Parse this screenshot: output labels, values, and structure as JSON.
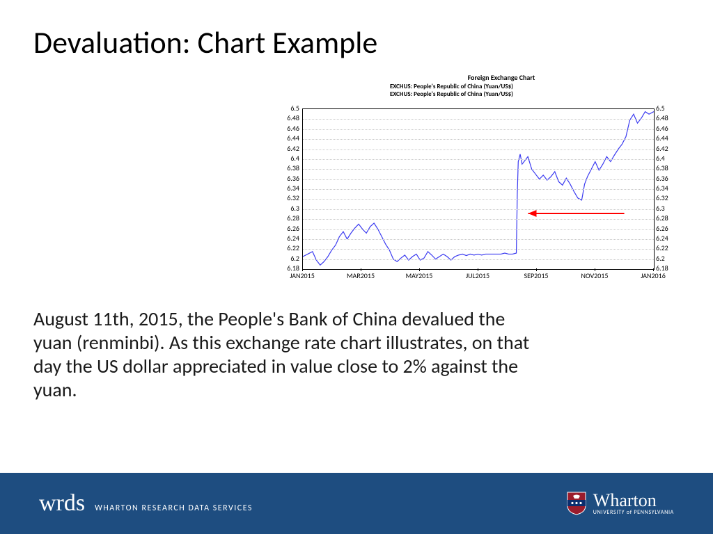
{
  "title": "Devaluation: Chart Example",
  "chart_header": {
    "title": "Foreign Exchange Chart",
    "line1": "EXCHUS:   People's Republic of China (Yuan/US$)",
    "line2": "EXCHUS:   People's Republic of China (Yuan/US$)"
  },
  "chart": {
    "type": "line",
    "line_color": "#3a3af0",
    "line_width": 1.2,
    "background_color": "#ffffff",
    "grid_color": "#c8c8c8",
    "border_color": "#000000",
    "ylim": [
      6.18,
      6.5
    ],
    "ytick_step": 0.02,
    "yticks": [
      6.18,
      6.2,
      6.22,
      6.24,
      6.26,
      6.28,
      6.3,
      6.32,
      6.34,
      6.36,
      6.38,
      6.4,
      6.42,
      6.44,
      6.46,
      6.48,
      6.5
    ],
    "ytick_labels": [
      "6.18",
      "6.2",
      "6.22",
      "6.24",
      "6.26",
      "6.28",
      "6.3",
      "6.32",
      "6.34",
      "6.36",
      "6.38",
      "6.4",
      "6.42",
      "6.44",
      "6.46",
      "6.48",
      "6.5"
    ],
    "xticks": [
      "JAN2015",
      "MAR2015",
      "MAY2015",
      "JUL2015",
      "SEP2015",
      "NOV2015",
      "JAN2016"
    ],
    "xlim_days": [
      0,
      365
    ],
    "tick_fontsize": 10,
    "data": [
      [
        0,
        6.205
      ],
      [
        5,
        6.21
      ],
      [
        10,
        6.215
      ],
      [
        14,
        6.198
      ],
      [
        18,
        6.188
      ],
      [
        22,
        6.195
      ],
      [
        26,
        6.205
      ],
      [
        30,
        6.218
      ],
      [
        34,
        6.228
      ],
      [
        38,
        6.245
      ],
      [
        42,
        6.255
      ],
      [
        46,
        6.24
      ],
      [
        50,
        6.252
      ],
      [
        54,
        6.262
      ],
      [
        58,
        6.27
      ],
      [
        62,
        6.26
      ],
      [
        66,
        6.252
      ],
      [
        70,
        6.265
      ],
      [
        74,
        6.272
      ],
      [
        78,
        6.26
      ],
      [
        82,
        6.245
      ],
      [
        86,
        6.23
      ],
      [
        90,
        6.218
      ],
      [
        94,
        6.2
      ],
      [
        98,
        6.195
      ],
      [
        102,
        6.202
      ],
      [
        106,
        6.208
      ],
      [
        110,
        6.198
      ],
      [
        114,
        6.205
      ],
      [
        118,
        6.21
      ],
      [
        122,
        6.198
      ],
      [
        126,
        6.202
      ],
      [
        130,
        6.215
      ],
      [
        134,
        6.208
      ],
      [
        138,
        6.2
      ],
      [
        142,
        6.205
      ],
      [
        146,
        6.21
      ],
      [
        150,
        6.205
      ],
      [
        154,
        6.198
      ],
      [
        158,
        6.205
      ],
      [
        162,
        6.208
      ],
      [
        166,
        6.21
      ],
      [
        170,
        6.207
      ],
      [
        174,
        6.21
      ],
      [
        178,
        6.208
      ],
      [
        182,
        6.21
      ],
      [
        186,
        6.208
      ],
      [
        190,
        6.21
      ],
      [
        194,
        6.21
      ],
      [
        198,
        6.21
      ],
      [
        202,
        6.21
      ],
      [
        206,
        6.21
      ],
      [
        210,
        6.212
      ],
      [
        214,
        6.21
      ],
      [
        218,
        6.21
      ],
      [
        222,
        6.212
      ],
      [
        223,
        6.33
      ],
      [
        224,
        6.395
      ],
      [
        226,
        6.41
      ],
      [
        228,
        6.39
      ],
      [
        230,
        6.395
      ],
      [
        234,
        6.405
      ],
      [
        238,
        6.38
      ],
      [
        242,
        6.37
      ],
      [
        246,
        6.36
      ],
      [
        250,
        6.368
      ],
      [
        254,
        6.358
      ],
      [
        258,
        6.365
      ],
      [
        262,
        6.375
      ],
      [
        266,
        6.355
      ],
      [
        270,
        6.348
      ],
      [
        274,
        6.362
      ],
      [
        278,
        6.35
      ],
      [
        282,
        6.335
      ],
      [
        286,
        6.322
      ],
      [
        290,
        6.318
      ],
      [
        293,
        6.35
      ],
      [
        296,
        6.365
      ],
      [
        300,
        6.38
      ],
      [
        304,
        6.395
      ],
      [
        308,
        6.378
      ],
      [
        312,
        6.39
      ],
      [
        316,
        6.405
      ],
      [
        320,
        6.395
      ],
      [
        324,
        6.408
      ],
      [
        328,
        6.42
      ],
      [
        332,
        6.43
      ],
      [
        336,
        6.445
      ],
      [
        340,
        6.478
      ],
      [
        344,
        6.49
      ],
      [
        348,
        6.472
      ],
      [
        352,
        6.482
      ],
      [
        356,
        6.495
      ],
      [
        360,
        6.49
      ],
      [
        365,
        6.495
      ]
    ],
    "annotation_arrow": {
      "color": "#ff0000",
      "width": 2,
      "from_x_day": 335,
      "to_x_day": 235,
      "y_value": 6.29
    }
  },
  "body_text": "August 11th, 2015, the People's Bank of China devalued the yuan (renminbi). As this exchange rate chart illustrates, on that day the US dollar appreciated in value close to 2% against the yuan.",
  "footer": {
    "wrds_mark": "wrds",
    "wrds_sub": "WHARTON RESEARCH DATA SERVICES",
    "wharton": "Wharton",
    "wharton_uni": "UNIVERSITY of PENNSYLVANIA",
    "bar_color": "#1e4d80",
    "shield_red": "#9b1c2c",
    "shield_blue": "#0b2e6f"
  }
}
